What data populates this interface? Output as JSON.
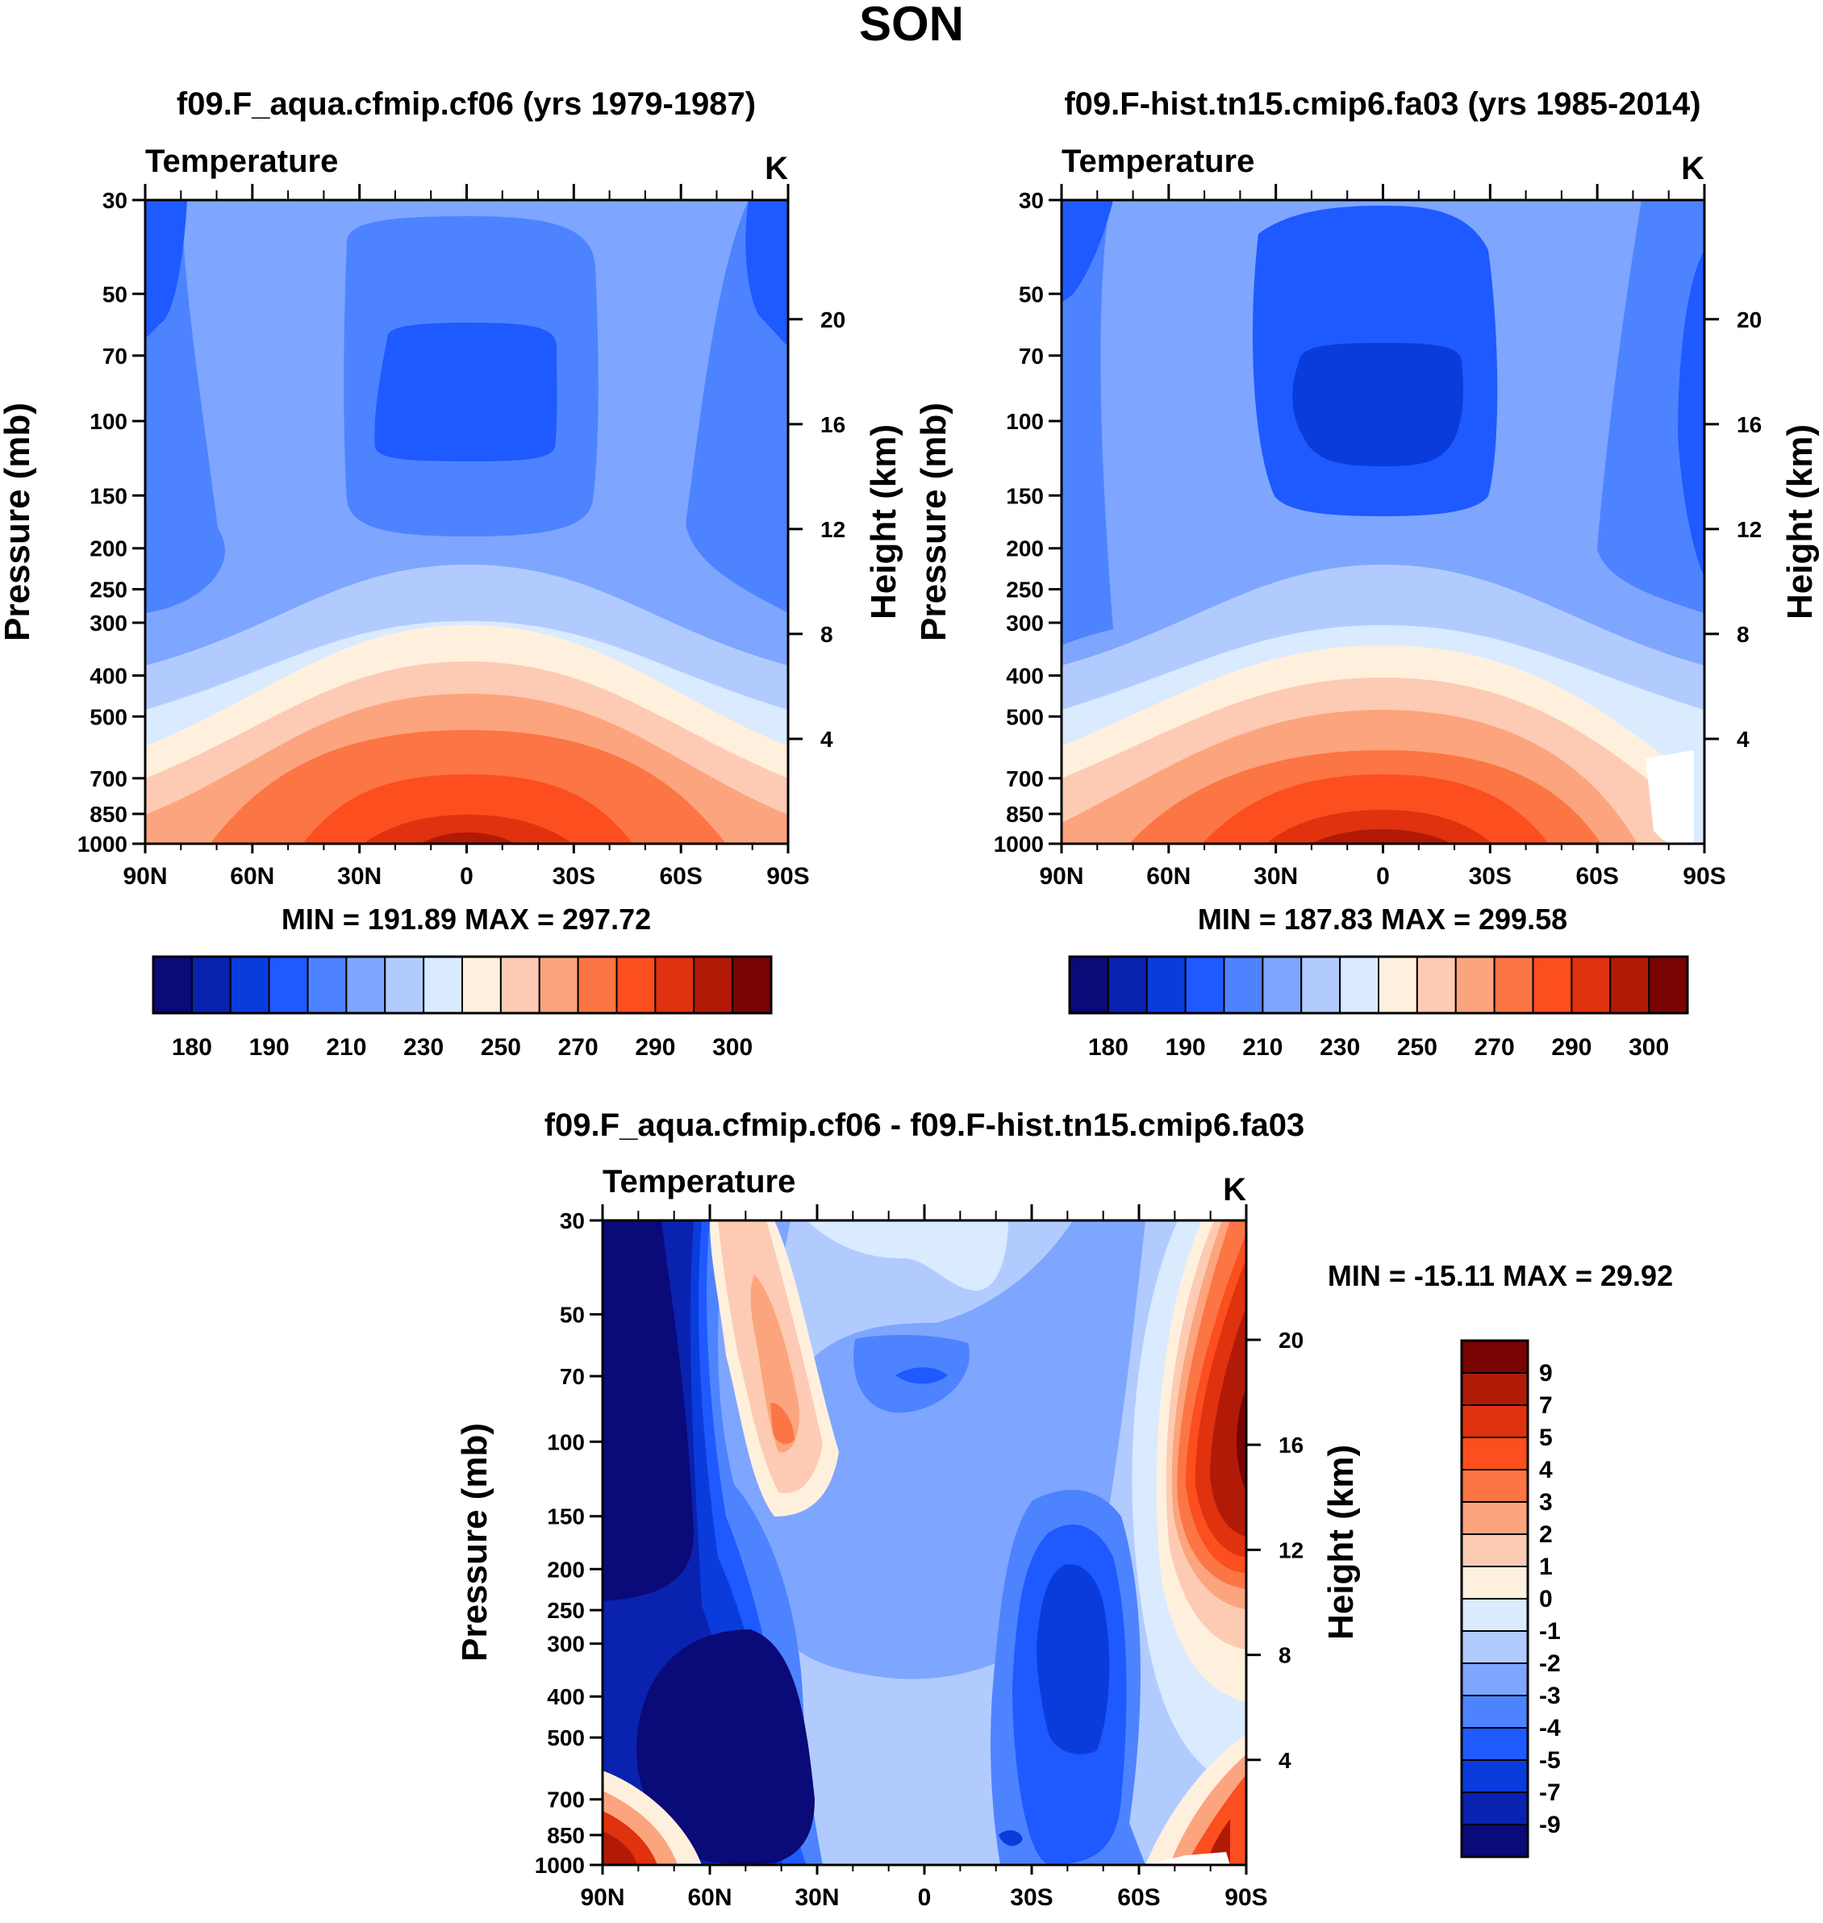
{
  "figure_title": "SON",
  "colors": {
    "abs_palette": [
      "#0a0a78",
      "#0a22b0",
      "#0a3cdc",
      "#1e5aff",
      "#4e83ff",
      "#7ea6ff",
      "#b2cbff",
      "#daeaff",
      "#fff0de",
      "#fdcbb3",
      "#fca47e",
      "#fc7544",
      "#fc4e1e",
      "#e0320e",
      "#b21a08",
      "#7a0404"
    ],
    "diff_palette": [
      "#0a0a78",
      "#0a22b0",
      "#0a3cdc",
      "#1e5aff",
      "#4e83ff",
      "#7ea6ff",
      "#b2cbff",
      "#daeaff",
      "#fff0de",
      "#fdcbb3",
      "#fca47e",
      "#fc7544",
      "#fc4e1e",
      "#e0320e",
      "#b21a08",
      "#7a0404"
    ]
  },
  "chart_data": [
    {
      "type": "heatmap",
      "id": "panel-left",
      "title": "f09.F_aqua.cfmip.cf06 (yrs 1979-1987)",
      "variable": "Temperature",
      "units": "K",
      "ylabel": "Pressure (mb)",
      "ylabel_right": "Height (km)",
      "x_ticks": [
        "90N",
        "60N",
        "30N",
        "0",
        "30S",
        "60S",
        "90S"
      ],
      "y_ticks": [
        30,
        50,
        70,
        100,
        150,
        200,
        250,
        300,
        400,
        500,
        700,
        850,
        1000
      ],
      "height_ticks": [
        20,
        16,
        12,
        8,
        4
      ],
      "min_max": "MIN = 191.89  MAX = 297.72",
      "colorbar_labels": [
        "180",
        "190",
        "210",
        "230",
        "250",
        "270",
        "290",
        "300"
      ],
      "contours_fill": [
        {
          "lat": 60,
          "p": 150,
          "value": 205
        },
        {
          "lat": 0,
          "p": 100,
          "value": 195
        },
        {
          "lat": 0,
          "p": 900,
          "value": 290
        }
      ],
      "min": 191.89,
      "max": 297.72
    },
    {
      "type": "heatmap",
      "id": "panel-right",
      "title": "f09.F-hist.tn15.cmip6.fa03 (yrs 1985-2014)",
      "variable": "Temperature",
      "units": "K",
      "ylabel": "Pressure (mb)",
      "ylabel_right": "Height (km)",
      "x_ticks": [
        "90N",
        "60N",
        "30N",
        "0",
        "30S",
        "60S",
        "90S"
      ],
      "y_ticks": [
        30,
        50,
        70,
        100,
        150,
        200,
        250,
        300,
        400,
        500,
        700,
        850,
        1000
      ],
      "height_ticks": [
        20,
        16,
        12,
        8,
        4
      ],
      "min_max": "MIN = 187.83  MAX = 299.58",
      "colorbar_labels": [
        "180",
        "190",
        "210",
        "230",
        "250",
        "270",
        "290",
        "300"
      ],
      "min": 187.83,
      "max": 299.58
    },
    {
      "type": "heatmap",
      "id": "panel-diff",
      "title": "f09.F_aqua.cfmip.cf06 - f09.F-hist.tn15.cmip6.fa03",
      "variable": "Temperature",
      "units": "K",
      "ylabel": "Pressure (mb)",
      "ylabel_right": "Height (km)",
      "x_ticks": [
        "90N",
        "60N",
        "30N",
        "0",
        "30S",
        "60S",
        "90S"
      ],
      "y_ticks": [
        30,
        50,
        70,
        100,
        150,
        200,
        250,
        300,
        400,
        500,
        700,
        850,
        1000
      ],
      "height_ticks": [
        20,
        16,
        12,
        8,
        4
      ],
      "min_max": "MIN = -15.11  MAX =  29.92",
      "colorbar_labels": [
        "9",
        "7",
        "5",
        "4",
        "3",
        "2",
        "1",
        "0",
        "-1",
        "-2",
        "-3",
        "-4",
        "-5",
        "-7",
        "-9"
      ],
      "min": -15.11,
      "max": 29.92
    }
  ]
}
